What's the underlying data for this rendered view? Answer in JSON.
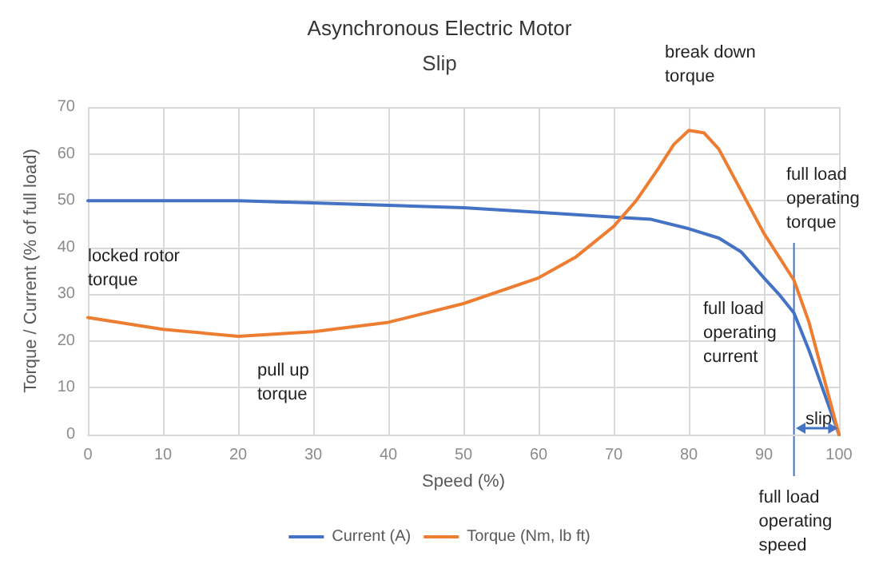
{
  "chart_data": {
    "type": "line",
    "title": "Asynchronous Electric Motor",
    "subtitle": "Slip",
    "xlabel": "Speed (%)",
    "ylabel": "Torque / Current (% of full load)",
    "xlim": [
      0,
      100
    ],
    "xticks": [
      0,
      10,
      20,
      30,
      40,
      50,
      60,
      70,
      80,
      90,
      100
    ],
    "ylim": [
      0,
      70
    ],
    "yticks": [
      0,
      10,
      20,
      30,
      40,
      50,
      60,
      70
    ],
    "grid": true,
    "legend": "bottom",
    "marker": "none",
    "line_style": "solid",
    "series": [
      {
        "name": "Current (A)",
        "color": "#4472c4",
        "x": [
          0,
          10,
          20,
          30,
          40,
          50,
          60,
          70,
          75,
          80,
          84,
          87,
          90,
          92,
          94,
          96,
          98,
          100
        ],
        "values": [
          50,
          50,
          50,
          49.5,
          49,
          48.5,
          47.5,
          46.5,
          46,
          44,
          42,
          39,
          33.5,
          30,
          26,
          18,
          9,
          0
        ]
      },
      {
        "name": "Torque (Nm, lb ft)",
        "color": "#ed7d31",
        "x": [
          0,
          10,
          20,
          30,
          40,
          50,
          60,
          65,
          70,
          73,
          76,
          78,
          80,
          82,
          84,
          86,
          88,
          90,
          92,
          94,
          96,
          98,
          100
        ],
        "values": [
          25,
          22.5,
          21,
          22,
          24,
          28,
          33.5,
          38,
          44.5,
          50,
          57,
          62,
          65,
          64.5,
          61,
          55,
          49,
          43,
          38,
          33,
          24,
          12,
          0
        ]
      }
    ],
    "ref_lines": [
      {
        "axis": "x",
        "value": 94,
        "label": "full load operating speed",
        "color": "#4472c4"
      }
    ],
    "annotations": [
      {
        "text": "locked rotor torque",
        "x": 0,
        "y": 25
      },
      {
        "text": "pull up torque",
        "x": 20,
        "y": 21
      },
      {
        "text": "break down torque",
        "x": 80,
        "y": 65
      },
      "full load operating torque",
      "full load operating current",
      "slip"
    ]
  }
}
